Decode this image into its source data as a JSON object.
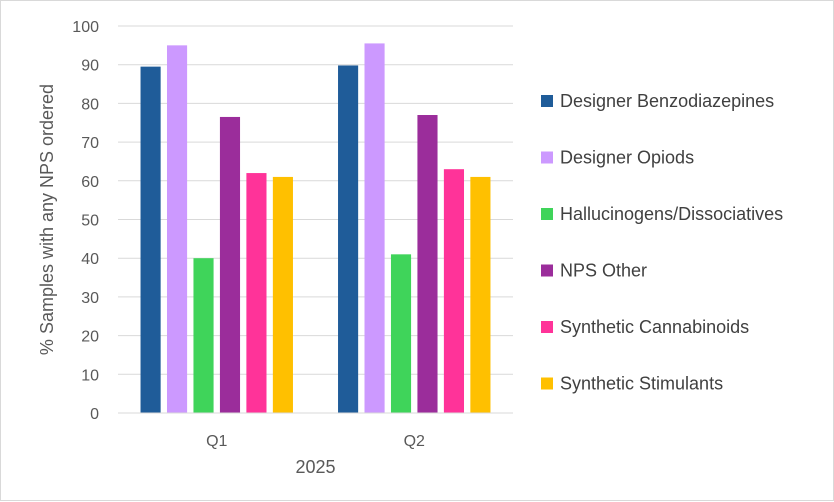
{
  "chart_data": {
    "type": "bar",
    "title": "",
    "xlabel": "2025",
    "ylabel": "% Samples with any NPS ordered",
    "categories": [
      "Q1",
      "Q2"
    ],
    "ylim": [
      0,
      100
    ],
    "yticks": [
      0,
      10,
      20,
      30,
      40,
      50,
      60,
      70,
      80,
      90,
      100
    ],
    "grid": true,
    "legend_position": "right",
    "series": [
      {
        "name": "Designer Benzodiazepines",
        "color": "#1f5c99",
        "values": [
          89.5,
          89.8
        ]
      },
      {
        "name": "Designer Opiods",
        "color": "#cc99ff",
        "values": [
          95,
          95.5
        ]
      },
      {
        "name": "Hallucinogens/Dissociatives",
        "color": "#3fd45a",
        "values": [
          40,
          41
        ]
      },
      {
        "name": "NPS Other",
        "color": "#9b2d9b",
        "values": [
          76.5,
          77
        ]
      },
      {
        "name": "Synthetic Cannabinoids",
        "color": "#ff3399",
        "values": [
          62,
          63
        ]
      },
      {
        "name": "Synthetic Stimulants",
        "color": "#ffc000",
        "values": [
          61,
          61
        ]
      }
    ]
  }
}
